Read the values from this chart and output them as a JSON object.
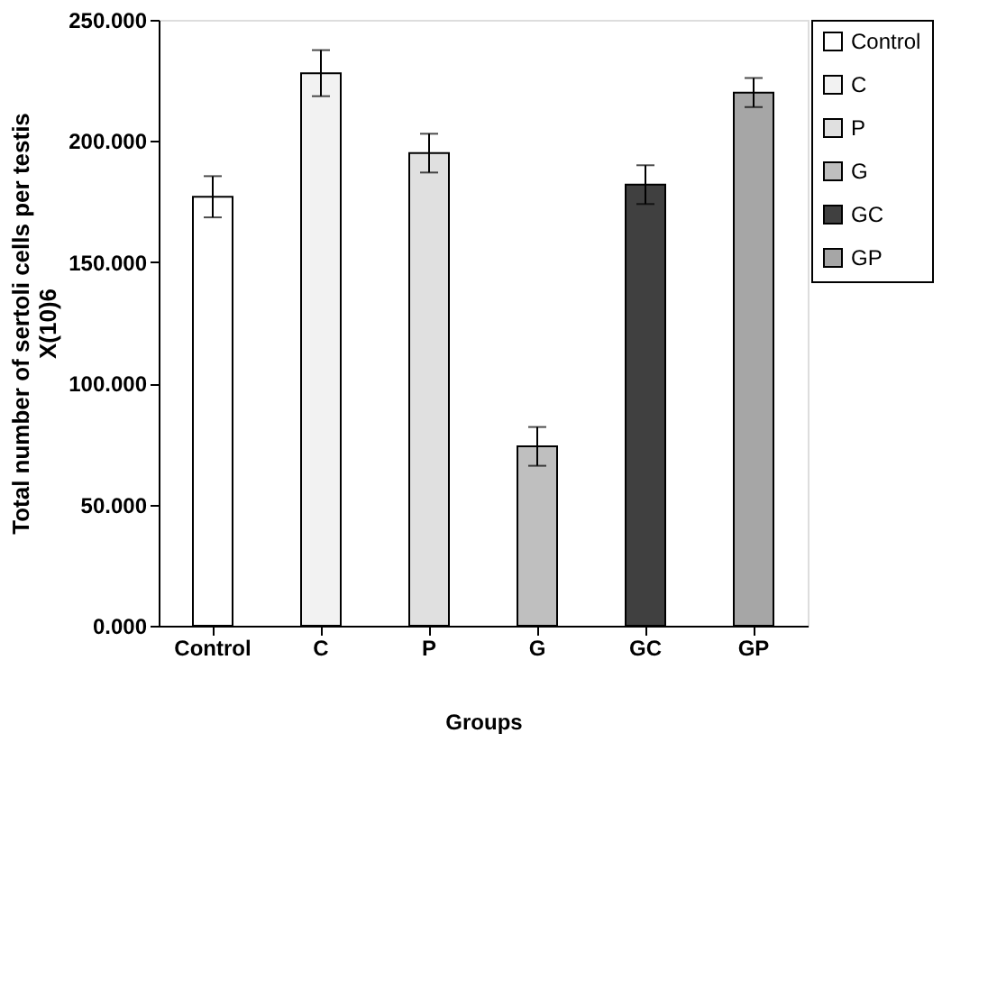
{
  "chart_data": {
    "type": "bar",
    "ylabel": "Total number of sertoli  cells  per testis\nX(10)6",
    "xlabel": "Groups",
    "categories": [
      "Control",
      "C",
      "P",
      "G",
      "GC",
      "GP"
    ],
    "series": [
      {
        "name": "Control",
        "color": "#ffffff",
        "values": [
          177,
          null,
          null,
          null,
          null,
          null
        ],
        "errors": [
          8.5,
          null,
          null,
          null,
          null,
          null
        ]
      },
      {
        "name": "C",
        "color": "#f2f2f2",
        "values": [
          null,
          228,
          null,
          null,
          null,
          null
        ],
        "errors": [
          null,
          9.5,
          null,
          null,
          null,
          null
        ]
      },
      {
        "name": "P",
        "color": "#e0e0e0",
        "values": [
          null,
          null,
          195,
          null,
          null,
          null
        ],
        "errors": [
          null,
          null,
          8,
          null,
          null,
          null
        ]
      },
      {
        "name": "G",
        "color": "#bfbfbf",
        "values": [
          null,
          null,
          null,
          74,
          null,
          null
        ],
        "errors": [
          null,
          null,
          null,
          8,
          null,
          null
        ]
      },
      {
        "name": "GC",
        "color": "#404040",
        "values": [
          null,
          null,
          null,
          null,
          182,
          null
        ],
        "errors": [
          null,
          null,
          null,
          null,
          8,
          null
        ]
      },
      {
        "name": "GP",
        "color": "#a6a6a6",
        "values": [
          null,
          null,
          null,
          null,
          null,
          220
        ],
        "errors": [
          null,
          null,
          null,
          null,
          null,
          6
        ]
      }
    ],
    "ylim": [
      0,
      250
    ],
    "yticks": [
      {
        "value": 0,
        "label": "0.000"
      },
      {
        "value": 50,
        "label": "50.000"
      },
      {
        "value": 100,
        "label": "100.000"
      },
      {
        "value": 150,
        "label": "150.000"
      },
      {
        "value": 200,
        "label": "200.000"
      },
      {
        "value": 250,
        "label": "250.000"
      }
    ],
    "grid": false,
    "legend": "right"
  }
}
